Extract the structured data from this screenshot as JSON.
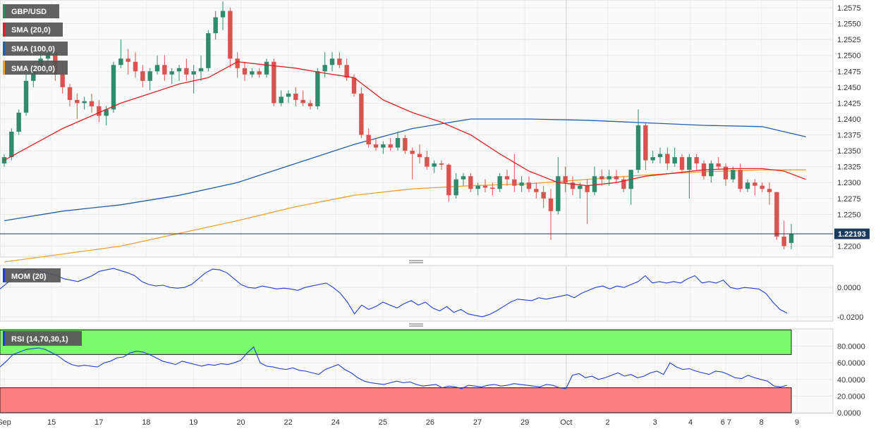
{
  "chart_data": [
    {
      "type": "candlestick",
      "instrument": "GBP/USD",
      "legend": [
        "GBP/USD",
        "SMA (20,0)",
        "SMA (100,0)",
        "SMA (200,0)"
      ],
      "ylim": [
        1.2185,
        1.2585
      ],
      "y_ticks": [
        "1.2575",
        "1.2550",
        "1.2525",
        "1.2500",
        "1.2475",
        "1.2450",
        "1.2425",
        "1.2400",
        "1.2375",
        "1.2350",
        "1.2325",
        "1.2300",
        "1.2275",
        "1.2250",
        "1.2200"
      ],
      "last_price": "1.22193",
      "last_value": 1.22193,
      "x_labels": [
        "Sep",
        "15",
        "17",
        "18",
        "19",
        "20",
        "22",
        "24",
        "25",
        "26",
        "27",
        "29",
        "Oct",
        "2",
        "3",
        "4",
        "6 7",
        "8",
        "9"
      ],
      "candles": [
        [
          1.233,
          1.2345,
          1.2325,
          1.234
        ],
        [
          1.234,
          1.2385,
          1.2335,
          1.238
        ],
        [
          1.238,
          1.2415,
          1.2375,
          1.241
        ],
        [
          1.241,
          1.247,
          1.2405,
          1.246
        ],
        [
          1.246,
          1.249,
          1.245,
          1.248
        ],
        [
          1.248,
          1.2505,
          1.247,
          1.2495
        ],
        [
          1.2495,
          1.251,
          1.2475,
          1.2505
        ],
        [
          1.2505,
          1.251,
          1.246,
          1.247
        ],
        [
          1.247,
          1.249,
          1.244,
          1.245
        ],
        [
          1.245,
          1.2455,
          1.242,
          1.243
        ],
        [
          1.243,
          1.244,
          1.24,
          1.2425
        ],
        [
          1.2425,
          1.2435,
          1.2415,
          1.2428
        ],
        [
          1.2428,
          1.244,
          1.241,
          1.242
        ],
        [
          1.242,
          1.243,
          1.2395,
          1.2405
        ],
        [
          1.2405,
          1.242,
          1.239,
          1.2415
        ],
        [
          1.2415,
          1.249,
          1.241,
          1.2485
        ],
        [
          1.2485,
          1.2525,
          1.248,
          1.2495
        ],
        [
          1.2495,
          1.251,
          1.247,
          1.249
        ],
        [
          1.249,
          1.2505,
          1.2465,
          1.2475
        ],
        [
          1.2475,
          1.2485,
          1.245,
          1.246
        ],
        [
          1.246,
          1.248,
          1.2445,
          1.2475
        ],
        [
          1.2475,
          1.25,
          1.247,
          1.2485
        ],
        [
          1.2485,
          1.25,
          1.246,
          1.247
        ],
        [
          1.247,
          1.248,
          1.2455,
          1.2475
        ],
        [
          1.2475,
          1.2485,
          1.246,
          1.248
        ],
        [
          1.248,
          1.2495,
          1.246,
          1.247
        ],
        [
          1.247,
          1.2485,
          1.244,
          1.2475
        ],
        [
          1.2475,
          1.25,
          1.246,
          1.248
        ],
        [
          1.248,
          1.254,
          1.2475,
          1.2535
        ],
        [
          1.2535,
          1.257,
          1.2525,
          1.256
        ],
        [
          1.256,
          1.2585,
          1.254,
          1.257
        ],
        [
          1.257,
          1.2575,
          1.248,
          1.2495
        ],
        [
          1.2495,
          1.2505,
          1.2465,
          1.248
        ],
        [
          1.248,
          1.249,
          1.246,
          1.247
        ],
        [
          1.247,
          1.248,
          1.2465,
          1.2475
        ],
        [
          1.2475,
          1.248,
          1.2465,
          1.247
        ],
        [
          1.247,
          1.2495,
          1.2465,
          1.249
        ],
        [
          1.249,
          1.2495,
          1.242,
          1.2425
        ],
        [
          1.2425,
          1.2445,
          1.242,
          1.2435
        ],
        [
          1.2435,
          1.2445,
          1.2425,
          1.244
        ],
        [
          1.244,
          1.245,
          1.242,
          1.243
        ],
        [
          1.243,
          1.2445,
          1.242,
          1.2425
        ],
        [
          1.2425,
          1.243,
          1.2415,
          1.242
        ],
        [
          1.242,
          1.248,
          1.2415,
          1.2475
        ],
        [
          1.2475,
          1.2505,
          1.2465,
          1.2485
        ],
        [
          1.2485,
          1.2505,
          1.2475,
          1.2495
        ],
        [
          1.2495,
          1.2505,
          1.248,
          1.2485
        ],
        [
          1.2485,
          1.2495,
          1.246,
          1.2465
        ],
        [
          1.2465,
          1.247,
          1.2435,
          1.244
        ],
        [
          1.244,
          1.245,
          1.237,
          1.2375
        ],
        [
          1.2375,
          1.2385,
          1.2355,
          1.236
        ],
        [
          1.236,
          1.237,
          1.235,
          1.2355
        ],
        [
          1.2355,
          1.2365,
          1.2345,
          1.236
        ],
        [
          1.236,
          1.237,
          1.235,
          1.2355
        ],
        [
          1.2355,
          1.238,
          1.235,
          1.237
        ],
        [
          1.237,
          1.2375,
          1.2345,
          1.235
        ],
        [
          1.235,
          1.2355,
          1.2305,
          1.2345
        ],
        [
          1.2345,
          1.236,
          1.233,
          1.234
        ],
        [
          1.234,
          1.235,
          1.232,
          1.2325
        ],
        [
          1.2325,
          1.2335,
          1.2315,
          1.233
        ],
        [
          1.233,
          1.2335,
          1.232,
          1.2328
        ],
        [
          1.2328,
          1.233,
          1.227,
          1.228
        ],
        [
          1.228,
          1.2315,
          1.2275,
          1.2305
        ],
        [
          1.2305,
          1.2315,
          1.2295,
          1.231
        ],
        [
          1.231,
          1.2315,
          1.2285,
          1.229
        ],
        [
          1.229,
          1.23,
          1.228,
          1.2295
        ],
        [
          1.2295,
          1.2305,
          1.2285,
          1.2292
        ],
        [
          1.2292,
          1.23,
          1.228,
          1.229
        ],
        [
          1.229,
          1.2315,
          1.2285,
          1.231
        ],
        [
          1.231,
          1.232,
          1.2295,
          1.2305
        ],
        [
          1.2305,
          1.2345,
          1.2285,
          1.2295
        ],
        [
          1.2295,
          1.231,
          1.2285,
          1.23
        ],
        [
          1.23,
          1.231,
          1.2285,
          1.229
        ],
        [
          1.229,
          1.23,
          1.2275,
          1.2285
        ],
        [
          1.2285,
          1.2295,
          1.226,
          1.2275
        ],
        [
          1.2275,
          1.229,
          1.221,
          1.2255
        ],
        [
          1.2255,
          1.234,
          1.225,
          1.231
        ],
        [
          1.231,
          1.2325,
          1.2285,
          1.23
        ],
        [
          1.23,
          1.231,
          1.228,
          1.229
        ],
        [
          1.229,
          1.23,
          1.2275,
          1.2295
        ],
        [
          1.2295,
          1.2305,
          1.2235,
          1.2285
        ],
        [
          1.2285,
          1.2325,
          1.228,
          1.231
        ],
        [
          1.231,
          1.232,
          1.2295,
          1.2305
        ],
        [
          1.2305,
          1.232,
          1.2295,
          1.231
        ],
        [
          1.231,
          1.232,
          1.23,
          1.2305
        ],
        [
          1.2305,
          1.231,
          1.2285,
          1.229
        ],
        [
          1.229,
          1.232,
          1.2265,
          1.232
        ],
        [
          1.232,
          1.2415,
          1.2315,
          1.239
        ],
        [
          1.239,
          1.2395,
          1.232,
          1.2335
        ],
        [
          1.2335,
          1.235,
          1.233,
          1.234
        ],
        [
          1.234,
          1.2355,
          1.233,
          1.2345
        ],
        [
          1.2345,
          1.2355,
          1.232,
          1.233
        ],
        [
          1.233,
          1.2355,
          1.2325,
          1.234
        ],
        [
          1.234,
          1.2345,
          1.2315,
          1.232
        ],
        [
          1.232,
          1.2345,
          1.2275,
          1.234
        ],
        [
          1.234,
          1.2345,
          1.232,
          1.233
        ],
        [
          1.233,
          1.2335,
          1.2305,
          1.231
        ],
        [
          1.231,
          1.2335,
          1.23,
          1.233
        ],
        [
          1.233,
          1.234,
          1.232,
          1.2325
        ],
        [
          1.2325,
          1.233,
          1.2295,
          1.2305
        ],
        [
          1.2305,
          1.2325,
          1.23,
          1.232
        ],
        [
          1.232,
          1.233,
          1.2285,
          1.229
        ],
        [
          1.229,
          1.2305,
          1.2285,
          1.23
        ],
        [
          1.23,
          1.2305,
          1.228,
          1.2295
        ],
        [
          1.2295,
          1.23,
          1.2285,
          1.229
        ],
        [
          1.229,
          1.23,
          1.2265,
          1.2285
        ],
        [
          1.2285,
          1.2285,
          1.221,
          1.2215
        ],
        [
          1.2215,
          1.224,
          1.2195,
          1.22
        ],
        [
          1.2205,
          1.2235,
          1.2195,
          1.2219
        ]
      ],
      "sma20": [
        [
          0,
          1.2335
        ],
        [
          4,
          1.236
        ],
        [
          8,
          1.2385
        ],
        [
          12,
          1.2405
        ],
        [
          16,
          1.2425
        ],
        [
          20,
          1.244
        ],
        [
          24,
          1.2455
        ],
        [
          28,
          1.2465
        ],
        [
          32,
          1.249
        ],
        [
          36,
          1.2485
        ],
        [
          40,
          1.248
        ],
        [
          44,
          1.2472
        ],
        [
          48,
          1.2465
        ],
        [
          52,
          1.243
        ],
        [
          56,
          1.241
        ],
        [
          60,
          1.2395
        ],
        [
          64,
          1.2375
        ],
        [
          68,
          1.2345
        ],
        [
          72,
          1.2318
        ],
        [
          76,
          1.23
        ],
        [
          80,
          1.2295
        ],
        [
          84,
          1.23
        ],
        [
          88,
          1.231
        ],
        [
          92,
          1.2315
        ],
        [
          96,
          1.232
        ],
        [
          100,
          1.2322
        ],
        [
          104,
          1.2322
        ],
        [
          107,
          1.2318
        ],
        [
          110,
          1.2305
        ]
      ],
      "sma100": [
        [
          0,
          1.224
        ],
        [
          8,
          1.2255
        ],
        [
          16,
          1.2265
        ],
        [
          24,
          1.228
        ],
        [
          32,
          1.23
        ],
        [
          40,
          1.233
        ],
        [
          48,
          1.236
        ],
        [
          56,
          1.2385
        ],
        [
          64,
          1.24
        ],
        [
          72,
          1.24
        ],
        [
          80,
          1.2398
        ],
        [
          88,
          1.2394
        ],
        [
          96,
          1.239
        ],
        [
          104,
          1.2388
        ],
        [
          110,
          1.2372
        ]
      ],
      "sma200": [
        [
          0,
          1.2175
        ],
        [
          16,
          1.22
        ],
        [
          24,
          1.222
        ],
        [
          32,
          1.224
        ],
        [
          40,
          1.2262
        ],
        [
          48,
          1.228
        ],
        [
          56,
          1.229
        ],
        [
          64,
          1.2295
        ],
        [
          72,
          1.2298
        ],
        [
          80,
          1.2305
        ],
        [
          88,
          1.2312
        ],
        [
          96,
          1.2317
        ],
        [
          104,
          1.232
        ],
        [
          110,
          1.232
        ]
      ]
    },
    {
      "type": "line",
      "name": "MOM (20)",
      "ylim": [
        -0.022,
        0.014
      ],
      "y_ticks": [
        "0.0000",
        "-0.0200"
      ],
      "values": [
        -0.001,
        0.003,
        0.007,
        0.011,
        0.0125,
        0.012,
        0.0105,
        0.0095,
        0.008,
        0.006,
        0.005,
        0.004,
        0.006,
        0.008,
        0.011,
        0.012,
        0.013,
        0.0115,
        0.01,
        0.008,
        0.004,
        0.002,
        0.001,
        0.0015,
        0.0,
        -0.0005,
        0.0,
        0.002,
        0.006,
        0.01,
        0.0125,
        0.012,
        0.01,
        0.006,
        0.002,
        0.0,
        -0.0005,
        0.001,
        0.0,
        -0.001,
        -0.0005,
        -0.001,
        -0.002,
        0.0,
        0.001,
        0.002,
        0.003,
        0.0,
        -0.004,
        -0.01,
        -0.018,
        -0.012,
        -0.015,
        -0.013,
        -0.01,
        -0.012,
        -0.014,
        -0.011,
        -0.009,
        -0.012,
        -0.01,
        -0.014,
        -0.016,
        -0.013,
        -0.017,
        -0.015,
        -0.018,
        -0.019,
        -0.02,
        -0.0185,
        -0.016,
        -0.013,
        -0.01,
        -0.008,
        -0.0085,
        -0.009,
        -0.007,
        -0.008,
        -0.007,
        -0.006,
        -0.005,
        -0.007,
        -0.004,
        -0.002,
        0.0,
        0.001,
        -0.001,
        0.001,
        0.0,
        0.002,
        0.004,
        0.008,
        0.003,
        0.004,
        0.003,
        0.004,
        0.003,
        0.006,
        0.008,
        0.003,
        0.004,
        0.003,
        0.005,
        0.0,
        -0.001,
        0.0,
        -0.0005,
        -0.001,
        -0.004,
        -0.01,
        -0.015,
        -0.0175
      ]
    },
    {
      "type": "line",
      "name": "RSI (14,70,30,1)",
      "ylim": [
        0,
        100
      ],
      "y_ticks": [
        "80.0000",
        "60.0000",
        "40.0000",
        "20.0000",
        "0.0000"
      ],
      "overbought": 70,
      "oversold": 30,
      "values": [
        55,
        62,
        70,
        73,
        76,
        77,
        78,
        76,
        72,
        68,
        62,
        58,
        56,
        57,
        56,
        55,
        60,
        62,
        66,
        67,
        72,
        74,
        73,
        70,
        66,
        62,
        60,
        58,
        62,
        60,
        58,
        56,
        58,
        57,
        59,
        58,
        60,
        63,
        72,
        79,
        60,
        56,
        55,
        53,
        52,
        54,
        51,
        50,
        48,
        46,
        52,
        55,
        58,
        52,
        48,
        42,
        38,
        36,
        35,
        34,
        36,
        38,
        36,
        37,
        34,
        32,
        33,
        34,
        30,
        32,
        31,
        29,
        33,
        32,
        31,
        33,
        34,
        32,
        33,
        35,
        34,
        33,
        32,
        31,
        34,
        33,
        30,
        29,
        45,
        47,
        42,
        44,
        40,
        42,
        45,
        48,
        44,
        46,
        42,
        44,
        48,
        50,
        46,
        60,
        55,
        52,
        53,
        50,
        48,
        46,
        50,
        49,
        46,
        42,
        41,
        45,
        42,
        40,
        38,
        32,
        31,
        33
      ]
    }
  ]
}
